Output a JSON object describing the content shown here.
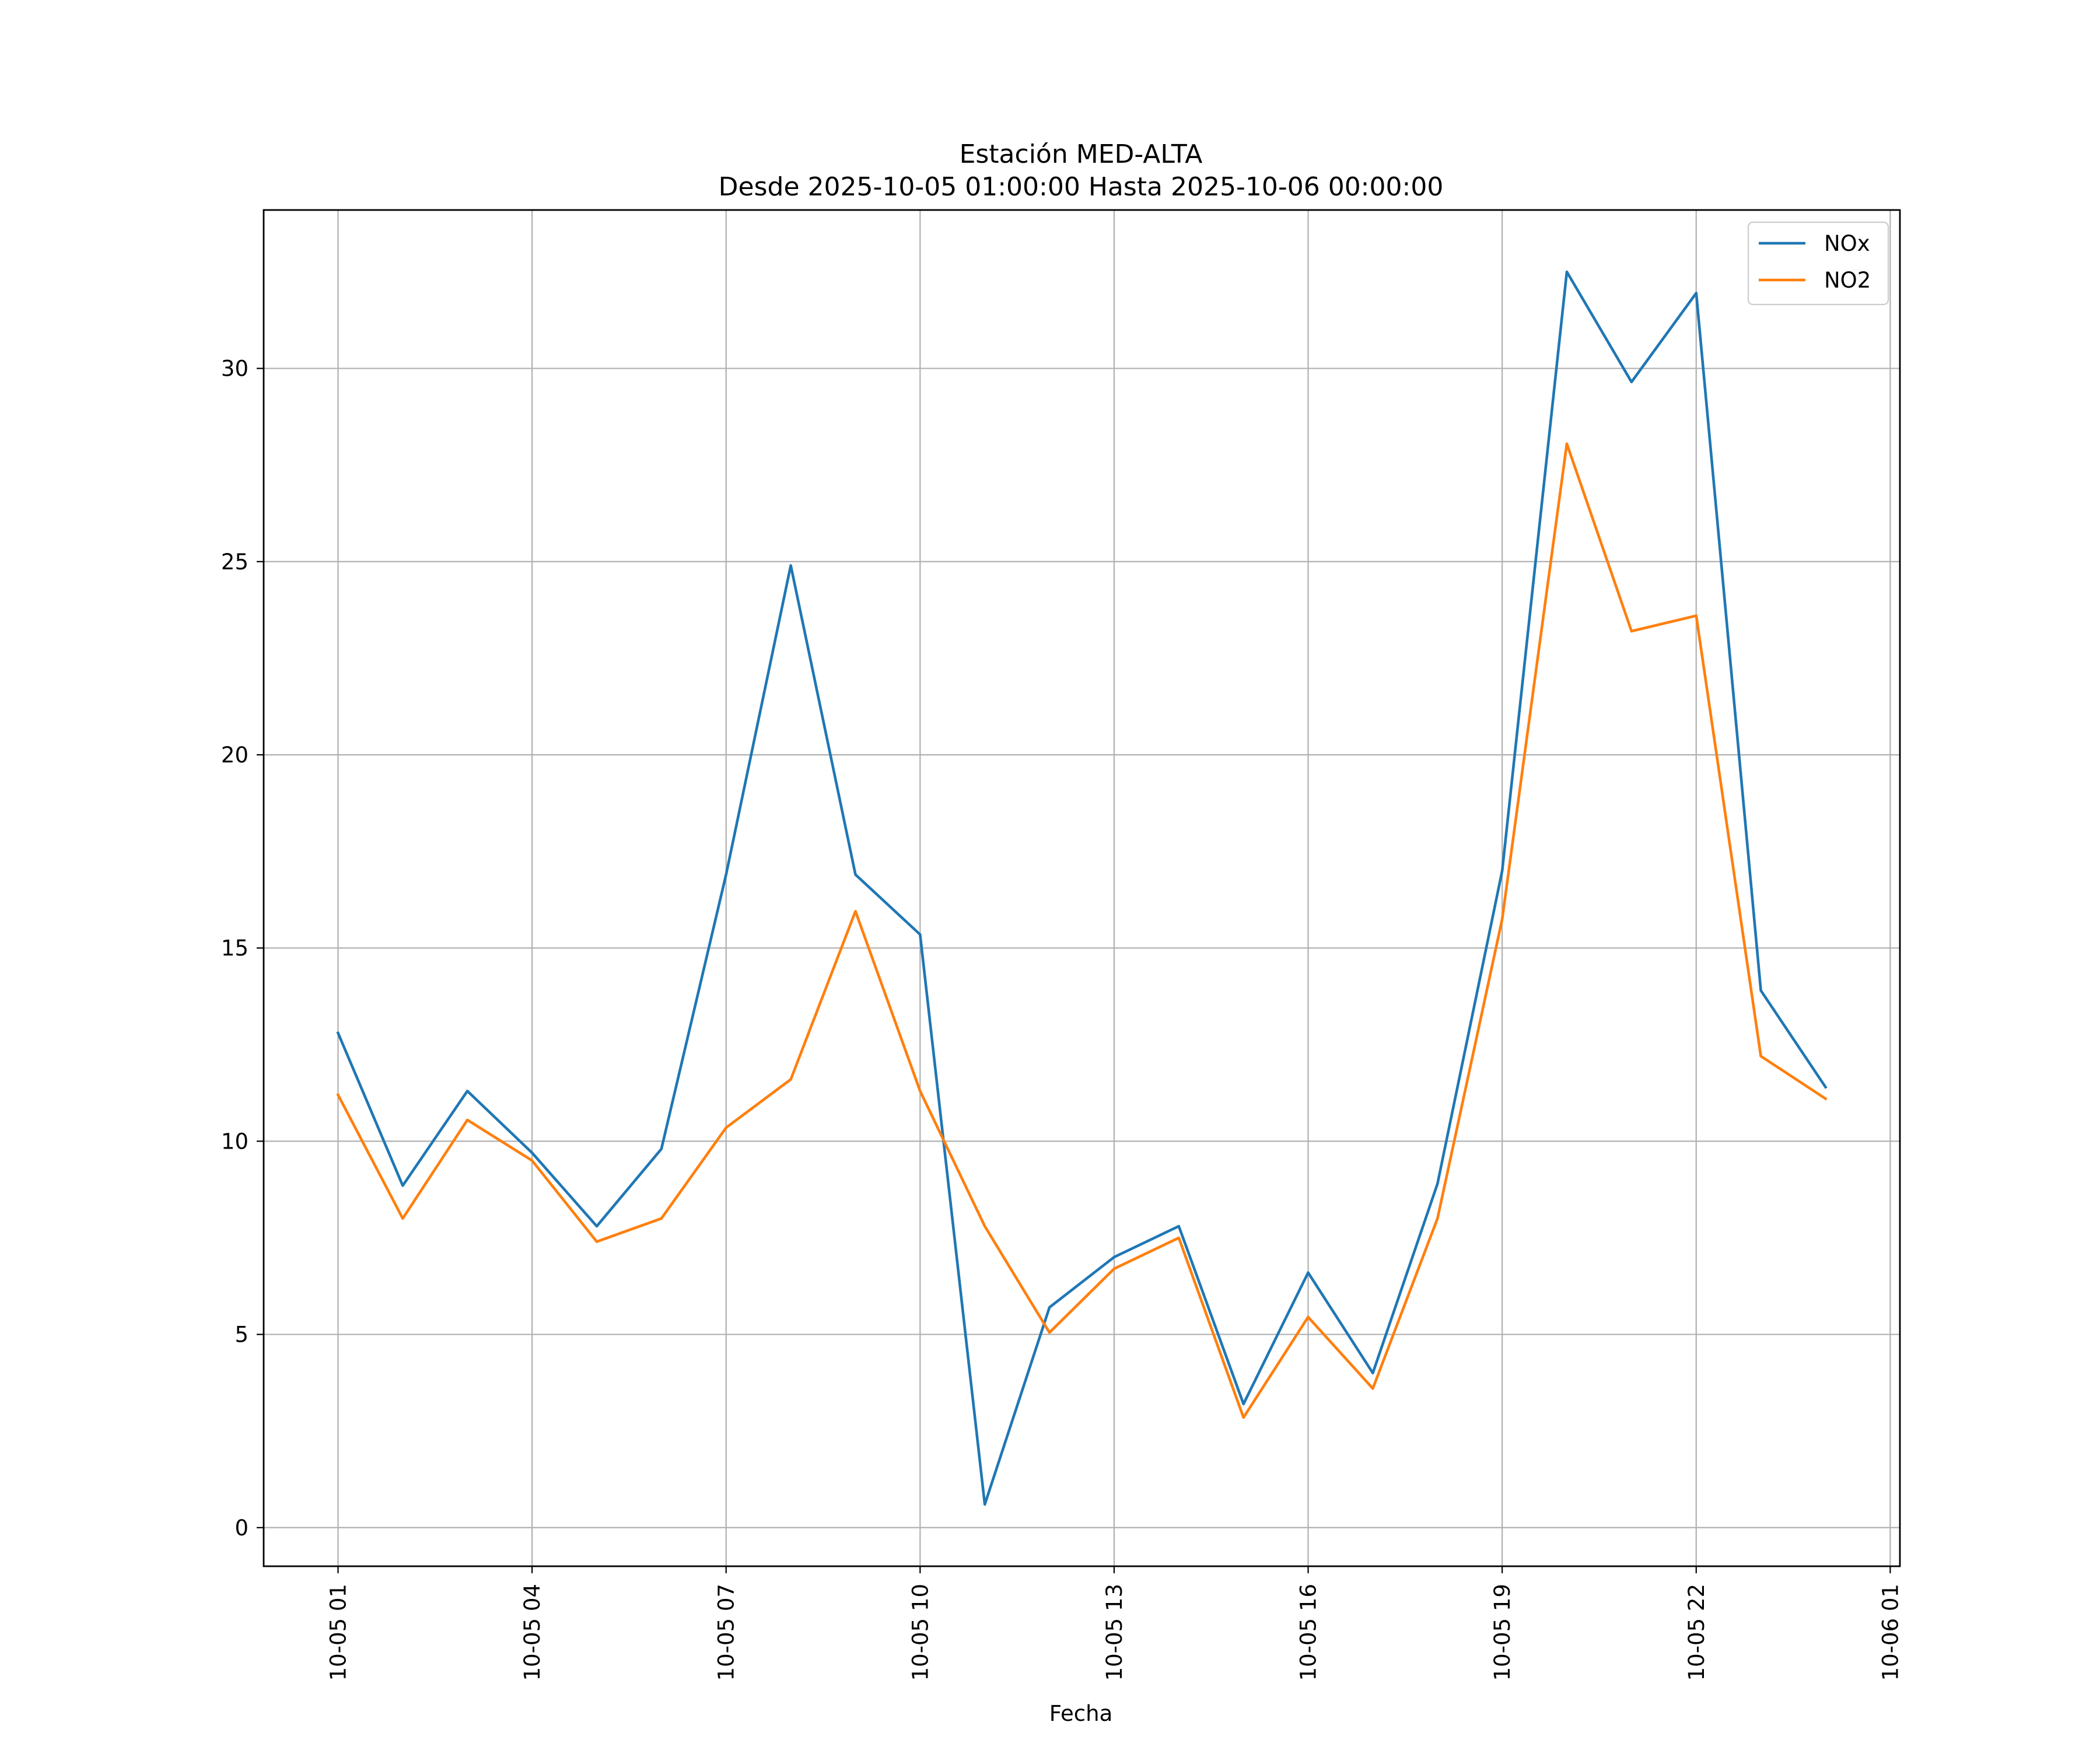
{
  "chart_data": {
    "type": "line",
    "title": "Estación MED-ALTA",
    "subtitle": "Desde 2025-10-05 01:00:00 Hasta 2025-10-06 00:00:00",
    "xlabel": "Fecha",
    "ylabel": "",
    "x": [
      "10-05 01",
      "10-05 02",
      "10-05 03",
      "10-05 04",
      "10-05 05",
      "10-05 06",
      "10-05 07",
      "10-05 08",
      "10-05 09",
      "10-05 10",
      "10-05 11",
      "10-05 12",
      "10-05 13",
      "10-05 14",
      "10-05 15",
      "10-05 16",
      "10-05 17",
      "10-05 18",
      "10-05 19",
      "10-05 20",
      "10-05 21",
      "10-05 22",
      "10-05 23",
      "10-06 00"
    ],
    "x_tick_labels": [
      "10-05 01",
      "10-05 04",
      "10-05 07",
      "10-05 10",
      "10-05 13",
      "10-05 16",
      "10-05 19",
      "10-05 22",
      "10-06 01"
    ],
    "x_tick_hours": [
      1,
      4,
      7,
      10,
      13,
      16,
      19,
      22,
      25
    ],
    "xlim_hours": [
      -0.15,
      25.15
    ],
    "ylim": [
      -1,
      34.1
    ],
    "y_ticks": [
      0,
      5,
      10,
      15,
      20,
      25,
      30
    ],
    "y_tick_labels": [
      "0",
      "5",
      "10",
      "15",
      "20",
      "25",
      "30"
    ],
    "grid": true,
    "legend_position": "top-right",
    "series": [
      {
        "name": "NOx",
        "color": "#1f77b4",
        "values": [
          12.8,
          8.85,
          11.3,
          9.7,
          7.8,
          9.8,
          16.9,
          24.9,
          16.9,
          15.35,
          0.6,
          5.7,
          7.0,
          7.8,
          3.2,
          6.6,
          4.0,
          8.9,
          17.0,
          32.5,
          29.65,
          31.95,
          13.9,
          11.4
        ]
      },
      {
        "name": "NO2",
        "color": "#ff7f0e",
        "values": [
          11.2,
          8.0,
          10.55,
          9.5,
          7.4,
          8.0,
          10.35,
          11.6,
          15.95,
          11.3,
          7.8,
          5.05,
          6.7,
          7.5,
          2.85,
          5.45,
          3.6,
          8.0,
          15.75,
          28.05,
          23.2,
          23.6,
          12.2,
          11.1
        ]
      }
    ]
  }
}
